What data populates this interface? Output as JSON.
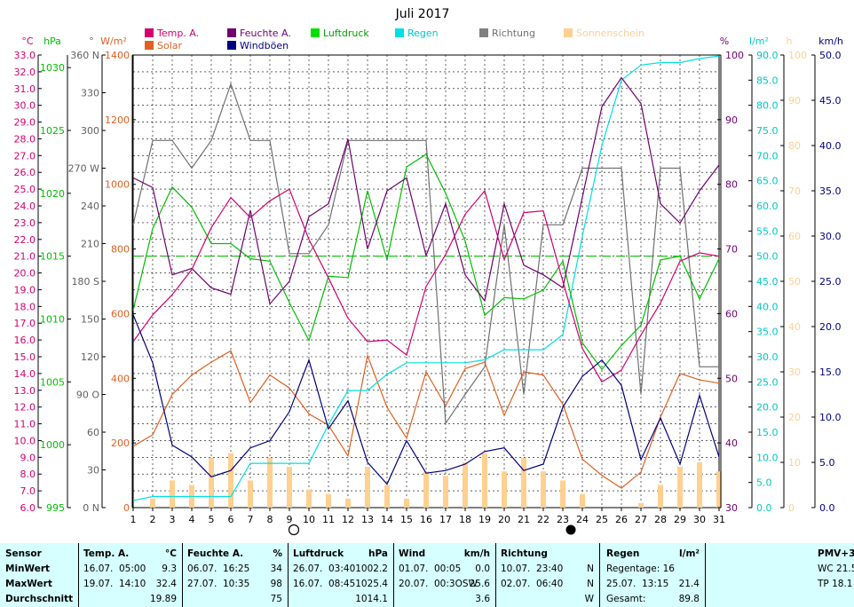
{
  "chart_data": {
    "type": "line",
    "title": "Juli 2017",
    "x_ticks": [
      1,
      2,
      3,
      4,
      5,
      6,
      7,
      8,
      9,
      10,
      11,
      12,
      13,
      14,
      15,
      16,
      17,
      18,
      19,
      20,
      21,
      22,
      23,
      24,
      25,
      26,
      27,
      28,
      29,
      30,
      31
    ],
    "axes": {
      "temp": {
        "label": "°C",
        "color": "#d40070",
        "min": 6.0,
        "max": 33.0,
        "ticks": [
          "6.0",
          "7.0",
          "8.0",
          "9.0",
          "10.0",
          "11.0",
          "12.0",
          "13.0",
          "14.0",
          "15.0",
          "16.0",
          "17.0",
          "18.0",
          "19.0",
          "20.0",
          "21.0",
          "22.0",
          "23.0",
          "24.0",
          "25.0",
          "26.0",
          "27.0",
          "28.0",
          "29.0",
          "30.0",
          "31.0",
          "32.0",
          "33.0"
        ]
      },
      "pressure": {
        "label": "hPa",
        "color": "#00c000",
        "min": 995,
        "max": 1031,
        "ticks": [
          "995",
          "1000",
          "1005",
          "1010",
          "1015",
          "1020",
          "1025",
          "1030"
        ]
      },
      "direction": {
        "label": "°",
        "color": "#606060",
        "min": 0,
        "max": 360,
        "ticks": [
          "0 N",
          "30",
          "60",
          "90 O",
          "120",
          "150",
          "180 S",
          "210",
          "240",
          "270 W",
          "300",
          "330",
          "360 N"
        ]
      },
      "solar": {
        "label": "W/m²",
        "color": "#e06020",
        "min": 0,
        "max": 1400,
        "ticks": [
          "0",
          "200",
          "400",
          "600",
          "800",
          "1000",
          "1200",
          "1400"
        ]
      },
      "humidity": {
        "label": "%",
        "color": "#700070",
        "min": 30,
        "max": 100,
        "ticks": [
          "30",
          "40",
          "50",
          "60",
          "70",
          "80",
          "90",
          "100"
        ]
      },
      "rain": {
        "label": "l/m²",
        "color": "#00c8c8",
        "min": 0,
        "max": 90,
        "ticks": [
          "0.0",
          "5.0",
          "10.0",
          "15.0",
          "20.0",
          "25.0",
          "30.0",
          "35.0",
          "40.0",
          "45.0",
          "50.0",
          "55.0",
          "60.0",
          "65.0",
          "70.0",
          "75.0",
          "80.0",
          "85.0",
          "90.0"
        ]
      },
      "sunshine": {
        "label": "h",
        "color": "#ffd090",
        "min": 0,
        "max": 100,
        "ticks": [
          "0",
          "10",
          "20",
          "30",
          "40",
          "50",
          "60",
          "70",
          "80",
          "90",
          "100"
        ]
      },
      "gust": {
        "label": "km/h",
        "color": "#000080",
        "min": 0,
        "max": 50,
        "ticks": [
          "0.0",
          "5.0",
          "10.0",
          "15.0",
          "20.0",
          "25.0",
          "30.0",
          "35.0",
          "40.0",
          "45.0",
          "50.0"
        ]
      }
    },
    "series": [
      {
        "name": "Temp. A.",
        "axis": "temp",
        "color": "#d40070",
        "x": [
          1,
          2,
          3,
          4,
          5,
          6,
          7,
          8,
          9,
          10,
          11,
          12,
          13,
          14,
          15,
          16,
          17,
          18,
          19,
          20,
          21,
          22,
          23,
          24,
          25,
          26,
          27,
          28,
          29,
          30,
          31
        ],
        "values": [
          15.9,
          17.5,
          18.7,
          20.2,
          22.7,
          24.5,
          23.3,
          24.3,
          25.0,
          22.0,
          19.7,
          17.3,
          15.9,
          16.0,
          15.1,
          19.2,
          21.1,
          23.5,
          24.9,
          20.8,
          23.6,
          23.7,
          19.5,
          15.5,
          13.5,
          14.2,
          16.3,
          18.2,
          20.7,
          21.2,
          21.0
        ]
      },
      {
        "name": "Feuchte A.",
        "axis": "humidity",
        "color": "#700070",
        "x": [
          1,
          2,
          3,
          4,
          5,
          6,
          7,
          8,
          9,
          10,
          11,
          12,
          13,
          14,
          15,
          16,
          17,
          18,
          19,
          20,
          21,
          22,
          23,
          24,
          25,
          26,
          27,
          28,
          29,
          30,
          31
        ],
        "values": [
          81,
          79.5,
          66,
          67,
          64,
          63,
          76,
          61.5,
          65,
          75,
          77,
          87,
          70,
          79,
          81,
          69,
          77,
          66,
          62,
          77,
          67.5,
          66,
          64,
          78,
          92,
          96.5,
          92.5,
          77,
          74,
          79,
          83
        ]
      },
      {
        "name": "Luftdruck",
        "axis": "pressure",
        "color": "#00c000",
        "x": [
          1,
          2,
          3,
          4,
          5,
          6,
          7,
          8,
          9,
          10,
          11,
          12,
          13,
          14,
          15,
          16,
          17,
          18,
          19,
          20,
          21,
          22,
          23,
          24,
          25,
          26,
          27,
          28,
          29,
          30,
          31
        ],
        "values": [
          1010.7,
          1017.2,
          1020.5,
          1018.9,
          1016.0,
          1016.0,
          1014.8,
          1014.6,
          1011.3,
          1008.3,
          1013.4,
          1013.3,
          1020.2,
          1014.7,
          1022.1,
          1023.1,
          1020.0,
          1016.2,
          1010.3,
          1011.7,
          1011.6,
          1012.3,
          1014.6,
          1008.1,
          1006.0,
          1007.9,
          1009.5,
          1014.7,
          1015.0,
          1011.6,
          1014.8
        ]
      },
      {
        "name": "Regen",
        "axis": "rain",
        "color": "#00e0e0",
        "x": [
          1,
          2,
          3,
          4,
          5,
          6,
          7,
          8,
          9,
          10,
          11,
          12,
          13,
          14,
          15,
          16,
          17,
          18,
          19,
          20,
          21,
          22,
          23,
          24,
          25,
          26,
          27,
          28,
          29,
          30,
          31
        ],
        "values": [
          1.4,
          2.2,
          2.2,
          2.2,
          2.2,
          2.2,
          8.8,
          8.8,
          8.8,
          8.8,
          16.5,
          23.3,
          23.3,
          26.5,
          28.8,
          28.8,
          28.8,
          28.8,
          29.4,
          31.4,
          31.4,
          31.4,
          34.4,
          54,
          72,
          85,
          88,
          88.5,
          88.5,
          89.3,
          89.8
        ]
      },
      {
        "name": "Richtung",
        "axis": "direction",
        "color": "#707070",
        "x": [
          1,
          2,
          3,
          4,
          5,
          6,
          7,
          8,
          9,
          10,
          11,
          12,
          13,
          14,
          15,
          16,
          17,
          18,
          19,
          20,
          21,
          22,
          23,
          24,
          25,
          26,
          27,
          28,
          29,
          30,
          31
        ],
        "values": [
          225,
          292,
          292,
          270,
          292,
          337,
          292,
          292,
          202,
          202,
          225,
          292,
          292,
          292,
          292,
          292,
          67,
          90,
          112,
          225,
          90,
          225,
          225,
          270,
          270,
          270,
          90,
          270,
          270,
          112,
          112
        ]
      },
      {
        "name": "Windböen",
        "axis": "gust",
        "color": "#000080",
        "x": [
          1,
          2,
          3,
          4,
          5,
          6,
          7,
          8,
          9,
          10,
          11,
          12,
          13,
          14,
          15,
          16,
          17,
          18,
          19,
          20,
          21,
          22,
          23,
          24,
          25,
          26,
          27,
          28,
          29,
          30,
          31
        ],
        "values": [
          21.3,
          16.0,
          6.9,
          5.6,
          3.4,
          4.1,
          6.6,
          7.4,
          10.6,
          16.3,
          8.7,
          11.8,
          5.0,
          2.6,
          7.4,
          3.8,
          4.1,
          4.8,
          6.2,
          6.6,
          4.1,
          4.8,
          11.1,
          14.5,
          16.3,
          13.5,
          5.3,
          9.9,
          4.8,
          12.4,
          5.6
        ]
      },
      {
        "name": "Solar",
        "axis": "solar",
        "color": "#e06020",
        "x": [
          1,
          2,
          3,
          4,
          5,
          6,
          7,
          8,
          9,
          10,
          11,
          12,
          13,
          14,
          15,
          16,
          17,
          18,
          19,
          20,
          21,
          22,
          23,
          24,
          25,
          26,
          27,
          28,
          29,
          30,
          31
        ],
        "values": [
          190,
          225,
          350,
          410,
          450,
          485,
          325,
          410,
          370,
          290,
          255,
          160,
          470,
          310,
          215,
          420,
          315,
          430,
          450,
          285,
          420,
          410,
          320,
          150,
          100,
          60,
          110,
          280,
          415,
          395,
          385
        ]
      }
    ],
    "bars": {
      "name": "Sonnenschein",
      "axis": "sunshine",
      "color": "#ffd090",
      "x": [
        1,
        2,
        3,
        4,
        5,
        6,
        7,
        8,
        9,
        10,
        11,
        12,
        13,
        14,
        15,
        16,
        17,
        18,
        19,
        20,
        21,
        22,
        23,
        24,
        25,
        26,
        27,
        28,
        29,
        30,
        31
      ],
      "values": [
        0,
        2,
        6,
        5,
        11,
        12,
        6,
        11,
        9,
        4,
        3,
        2,
        9,
        5,
        2,
        8,
        7,
        10,
        12,
        8,
        11,
        8,
        6,
        3,
        0,
        0,
        1,
        5,
        9,
        10,
        8
      ]
    },
    "reference_line": {
      "axis": "rain",
      "value": 50,
      "color": "#00c000",
      "style": "dashed"
    },
    "moon_markers": [
      {
        "day": 9,
        "phase": "full"
      },
      {
        "day": 23,
        "phase": "new"
      }
    ],
    "legend": {
      "row1": [
        {
          "label": "Temp. A.",
          "color": "#d40070"
        },
        {
          "label": "Feuchte A.",
          "color": "#700070"
        },
        {
          "label": "Luftdruck",
          "color": "#00e000"
        },
        {
          "label": "Regen",
          "color": "#00e0e0"
        },
        {
          "label": "Richtung",
          "color": "#808080"
        },
        {
          "label": "Sonnenschein",
          "color": "#ffd090"
        }
      ],
      "row2": [
        {
          "label": "Solar",
          "color": "#e06020"
        },
        {
          "label": "Windböen",
          "color": "#000080"
        }
      ]
    }
  },
  "stats": {
    "sensor": {
      "header": "Sensor",
      "rows": [
        "MinWert",
        "MaxWert",
        "Durchschnitt"
      ]
    },
    "temp": {
      "header": "Temp. A.",
      "unit": "°C",
      "min": {
        "date": "16.07.",
        "time": "05:00",
        "value": "9.3"
      },
      "max": {
        "date": "19.07.",
        "time": "14:10",
        "value": "32.4"
      },
      "avg": "19.89"
    },
    "humidity": {
      "header": "Feuchte A.",
      "unit": "%",
      "min": {
        "date": "06.07.",
        "time": "16:25",
        "value": "34"
      },
      "max": {
        "date": "27.07.",
        "time": "10:35",
        "value": "98"
      },
      "avg": "75"
    },
    "pressure": {
      "header": "Luftdruck",
      "unit": "hPa",
      "min": {
        "date": "26.07.",
        "time": "03:40",
        "value": "1002.2"
      },
      "max": {
        "date": "16.07.",
        "time": "08:45",
        "value": "1025.4"
      },
      "avg": "1014.1"
    },
    "wind": {
      "header": "Wind",
      "unit": "km/h",
      "min": {
        "date": "01.07.",
        "time": "00:05",
        "value": "0.0"
      },
      "max": {
        "date": "20.07.",
        "time": "00:3OSW",
        "value": "25.6"
      },
      "avg": "3.6"
    },
    "direction": {
      "header": "Richtung",
      "min": {
        "date": "10.07.",
        "time": "23:40",
        "value": "N"
      },
      "max": {
        "date": "02.07.",
        "time": "06:40",
        "value": "N"
      },
      "avg": "W"
    },
    "rain": {
      "header": "Regen",
      "unit": "l/m²",
      "days_label": "Regentage: 16",
      "max": {
        "date": "25.07.",
        "time": "13:15",
        "value": "21.4"
      },
      "total_label": "Gesamt:",
      "total": "89.8"
    },
    "pmv": {
      "header": "PMV+3",
      "wc": "WC 21.5",
      "tp": "TP 18.1"
    }
  }
}
